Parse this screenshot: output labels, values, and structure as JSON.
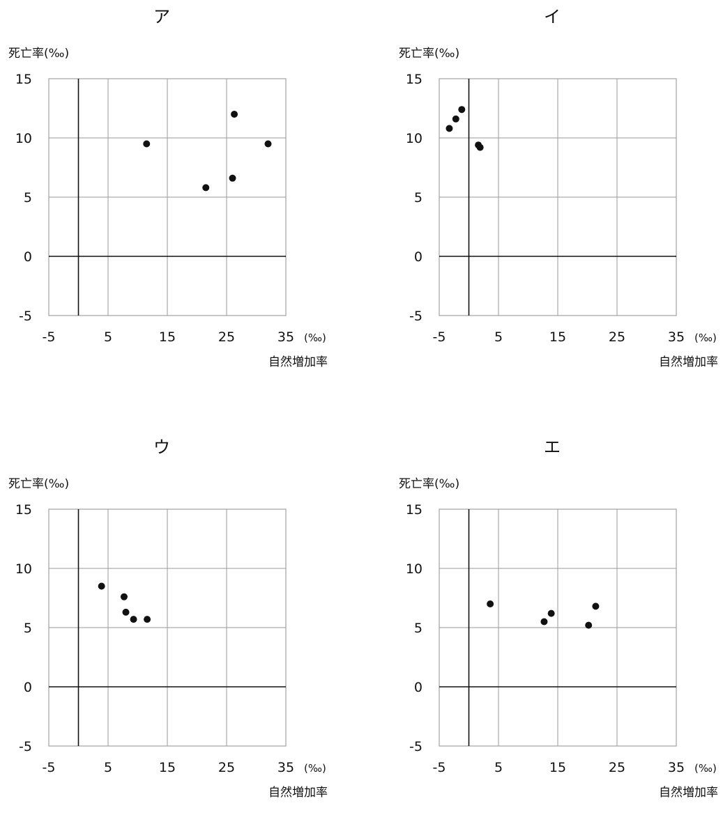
{
  "chart_data": [
    {
      "type": "scatter",
      "title": "ア",
      "ylabel": "死亡率(‰)",
      "xlabel": "自然増加率",
      "x_unit": "(‰)",
      "xlim": [
        -5,
        35
      ],
      "ylim": [
        -5,
        15
      ],
      "x_ticks": [
        "-5",
        "5",
        "15",
        "25",
        "35"
      ],
      "y_ticks": [
        "15",
        "10",
        "5",
        "0",
        "-5"
      ],
      "grid": true,
      "points": [
        {
          "x": 11.5,
          "y": 9.5
        },
        {
          "x": 21.5,
          "y": 5.8
        },
        {
          "x": 26.0,
          "y": 6.6
        },
        {
          "x": 26.3,
          "y": 12.0
        },
        {
          "x": 32.0,
          "y": 9.5
        }
      ]
    },
    {
      "type": "scatter",
      "title": "イ",
      "ylabel": "死亡率(‰)",
      "xlabel": "自然増加率",
      "x_unit": "(‰)",
      "xlim": [
        -5,
        35
      ],
      "ylim": [
        -5,
        15
      ],
      "x_ticks": [
        "-5",
        "5",
        "15",
        "25",
        "35"
      ],
      "y_ticks": [
        "15",
        "10",
        "5",
        "0",
        "-5"
      ],
      "grid": true,
      "points": [
        {
          "x": -3.3,
          "y": 10.8
        },
        {
          "x": -2.2,
          "y": 11.6
        },
        {
          "x": -1.2,
          "y": 12.4
        },
        {
          "x": 1.6,
          "y": 9.4
        },
        {
          "x": 1.9,
          "y": 9.2
        }
      ]
    },
    {
      "type": "scatter",
      "title": "ウ",
      "ylabel": "死亡率(‰)",
      "xlabel": "自然増加率",
      "x_unit": "(‰)",
      "xlim": [
        -5,
        35
      ],
      "ylim": [
        -5,
        15
      ],
      "x_ticks": [
        "-5",
        "5",
        "15",
        "25",
        "35"
      ],
      "y_ticks": [
        "15",
        "10",
        "5",
        "0",
        "-5"
      ],
      "grid": true,
      "points": [
        {
          "x": 3.9,
          "y": 8.5
        },
        {
          "x": 7.7,
          "y": 7.6
        },
        {
          "x": 8.0,
          "y": 6.3
        },
        {
          "x": 9.3,
          "y": 5.7
        },
        {
          "x": 11.6,
          "y": 5.7
        }
      ]
    },
    {
      "type": "scatter",
      "title": "エ",
      "ylabel": "死亡率(‰)",
      "xlabel": "自然増加率",
      "x_unit": "(‰)",
      "xlim": [
        -5,
        35
      ],
      "ylim": [
        -5,
        15
      ],
      "x_ticks": [
        "-5",
        "5",
        "15",
        "25",
        "35"
      ],
      "y_ticks": [
        "15",
        "10",
        "5",
        "0",
        "-5"
      ],
      "grid": true,
      "points": [
        {
          "x": 3.6,
          "y": 7.0
        },
        {
          "x": 12.7,
          "y": 5.5
        },
        {
          "x": 13.9,
          "y": 6.2
        },
        {
          "x": 20.2,
          "y": 5.2
        },
        {
          "x": 21.4,
          "y": 6.8
        }
      ]
    }
  ]
}
